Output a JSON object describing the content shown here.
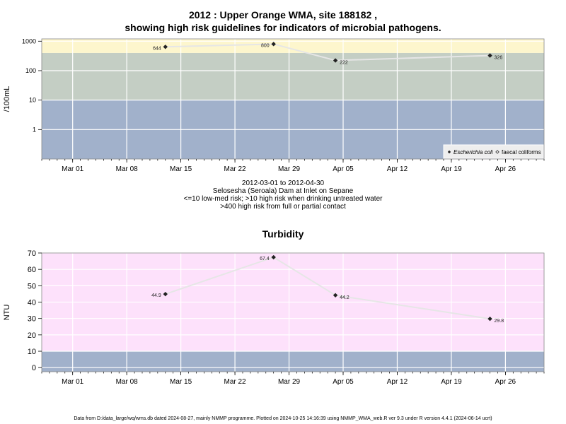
{
  "panel1": {
    "title_line1": "2012 : Upper Orange WMA, site 188182 ,",
    "title_line2": "showing high risk guidelines for indicators of microbial pathogens.",
    "ylabel": "/100mL",
    "caption_line1": "2012-03-01 to 2012-04-30",
    "caption_line2": "Selosesha (Seroala) Dam at Inlet on Sepane",
    "caption_line3": "<=10 low-med risk; >10 high risk when drinking untreated water",
    "caption_line4": ">400 high risk from full or partial contact",
    "legend": {
      "ecoli": "Escherichia coli",
      "faecal": "faecal coliforms"
    }
  },
  "panel2": {
    "title": "Turbidity",
    "ylabel": "NTU"
  },
  "footer": "Data from D:/data_large/wq/wms.db dated 2024-08-27, mainly NMMP programme. Plotted on 2024-10-25 14:16:39 using NMMP_WMA_web.R ver 9.3 under R version 4.4.1 (2024-06-14 ucrt)",
  "colors": {
    "band_low": "#a1b1cb",
    "band_mid": "#c4cec4",
    "band_high": "#fdf6cd",
    "band_turb_high": "#fde1fb",
    "line": "#e6e6e6",
    "point": "#222222"
  },
  "chart_data": [
    {
      "type": "line",
      "title": "2012 : Upper Orange WMA, site 188182 , showing high risk guidelines for indicators of microbial pathogens.",
      "ylabel": "/100mL",
      "yscale": "log",
      "ylim": [
        0.1,
        1200
      ],
      "y_ticks": [
        1,
        10,
        100,
        1000
      ],
      "xlim": [
        "2012-02-26",
        "2012-05-01"
      ],
      "x_ticks": [
        "2012-03-01",
        "2012-03-08",
        "2012-03-15",
        "2012-03-22",
        "2012-03-29",
        "2012-04-05",
        "2012-04-12",
        "2012-04-19",
        "2012-04-26"
      ],
      "x_tick_labels": [
        "Mar 01",
        "Mar 08",
        "Mar 15",
        "Mar 22",
        "Mar 29",
        "Apr 05",
        "Apr 12",
        "Apr 19",
        "Apr 26"
      ],
      "grid": true,
      "legend_position": "bottom-right",
      "bands": [
        {
          "from": 0.1,
          "to": 10,
          "label": "<=10 low-med risk"
        },
        {
          "from": 10,
          "to": 400,
          "label": ">10 high risk when drinking untreated water"
        },
        {
          "from": 400,
          "to": 1200,
          "label": ">400 high risk from full or partial contact"
        }
      ],
      "series": [
        {
          "name": "Escherichia coli",
          "x": [
            "2012-03-13",
            "2012-03-27",
            "2012-04-04",
            "2012-04-24"
          ],
          "values": [
            644,
            800,
            222,
            326
          ],
          "labels": [
            "644",
            "800",
            "222",
            "326"
          ]
        },
        {
          "name": "faecal coliforms",
          "x": [],
          "values": []
        }
      ]
    },
    {
      "type": "line",
      "title": "Turbidity",
      "ylabel": "NTU",
      "ylim": [
        -2.5,
        70
      ],
      "y_ticks": [
        0,
        10,
        20,
        30,
        40,
        50,
        60,
        70
      ],
      "xlim": [
        "2012-02-26",
        "2012-05-01"
      ],
      "x_ticks": [
        "2012-03-01",
        "2012-03-08",
        "2012-03-15",
        "2012-03-22",
        "2012-03-29",
        "2012-04-05",
        "2012-04-12",
        "2012-04-19",
        "2012-04-26"
      ],
      "x_tick_labels": [
        "Mar 01",
        "Mar 08",
        "Mar 15",
        "Mar 22",
        "Mar 29",
        "Apr 05",
        "Apr 12",
        "Apr 19",
        "Apr 26"
      ],
      "grid": true,
      "bands": [
        {
          "from": -2.5,
          "to": 10
        },
        {
          "from": 10,
          "to": 70
        }
      ],
      "series": [
        {
          "x": [
            "2012-03-13",
            "2012-03-27",
            "2012-04-04",
            "2012-04-24"
          ],
          "values": [
            44.9,
            67.4,
            44.2,
            29.8
          ],
          "labels": [
            "44.9",
            "67.4",
            "44.2",
            "29.8"
          ]
        }
      ]
    }
  ]
}
